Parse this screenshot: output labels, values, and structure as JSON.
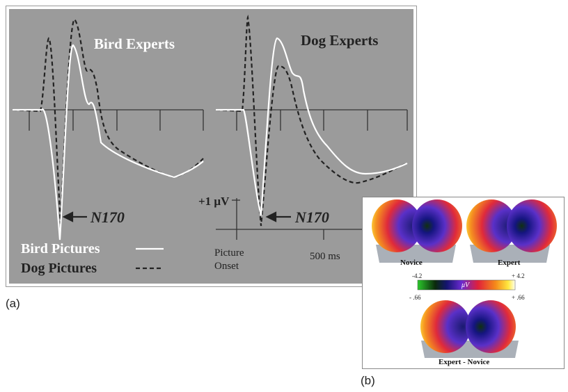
{
  "panel_a": {
    "label": "(a)",
    "left_title": "Bird Experts",
    "right_title": "Dog Experts",
    "left_annotation": "N170",
    "right_annotation": "N170",
    "scale_label": "+1 μV",
    "onset_label": "Picture Onset",
    "time_label": "500 ms",
    "legend": [
      "Bird Pictures",
      "Dog Pictures"
    ]
  },
  "panel_b": {
    "label": "(b)",
    "maps": [
      "Novice",
      "Expert",
      "Expert - Novice"
    ],
    "colorbar_unit": "μV",
    "top_min": "-4.2",
    "top_max": "+ 4.2",
    "bottom_min": "- .66",
    "bottom_max": "+ .66"
  }
}
